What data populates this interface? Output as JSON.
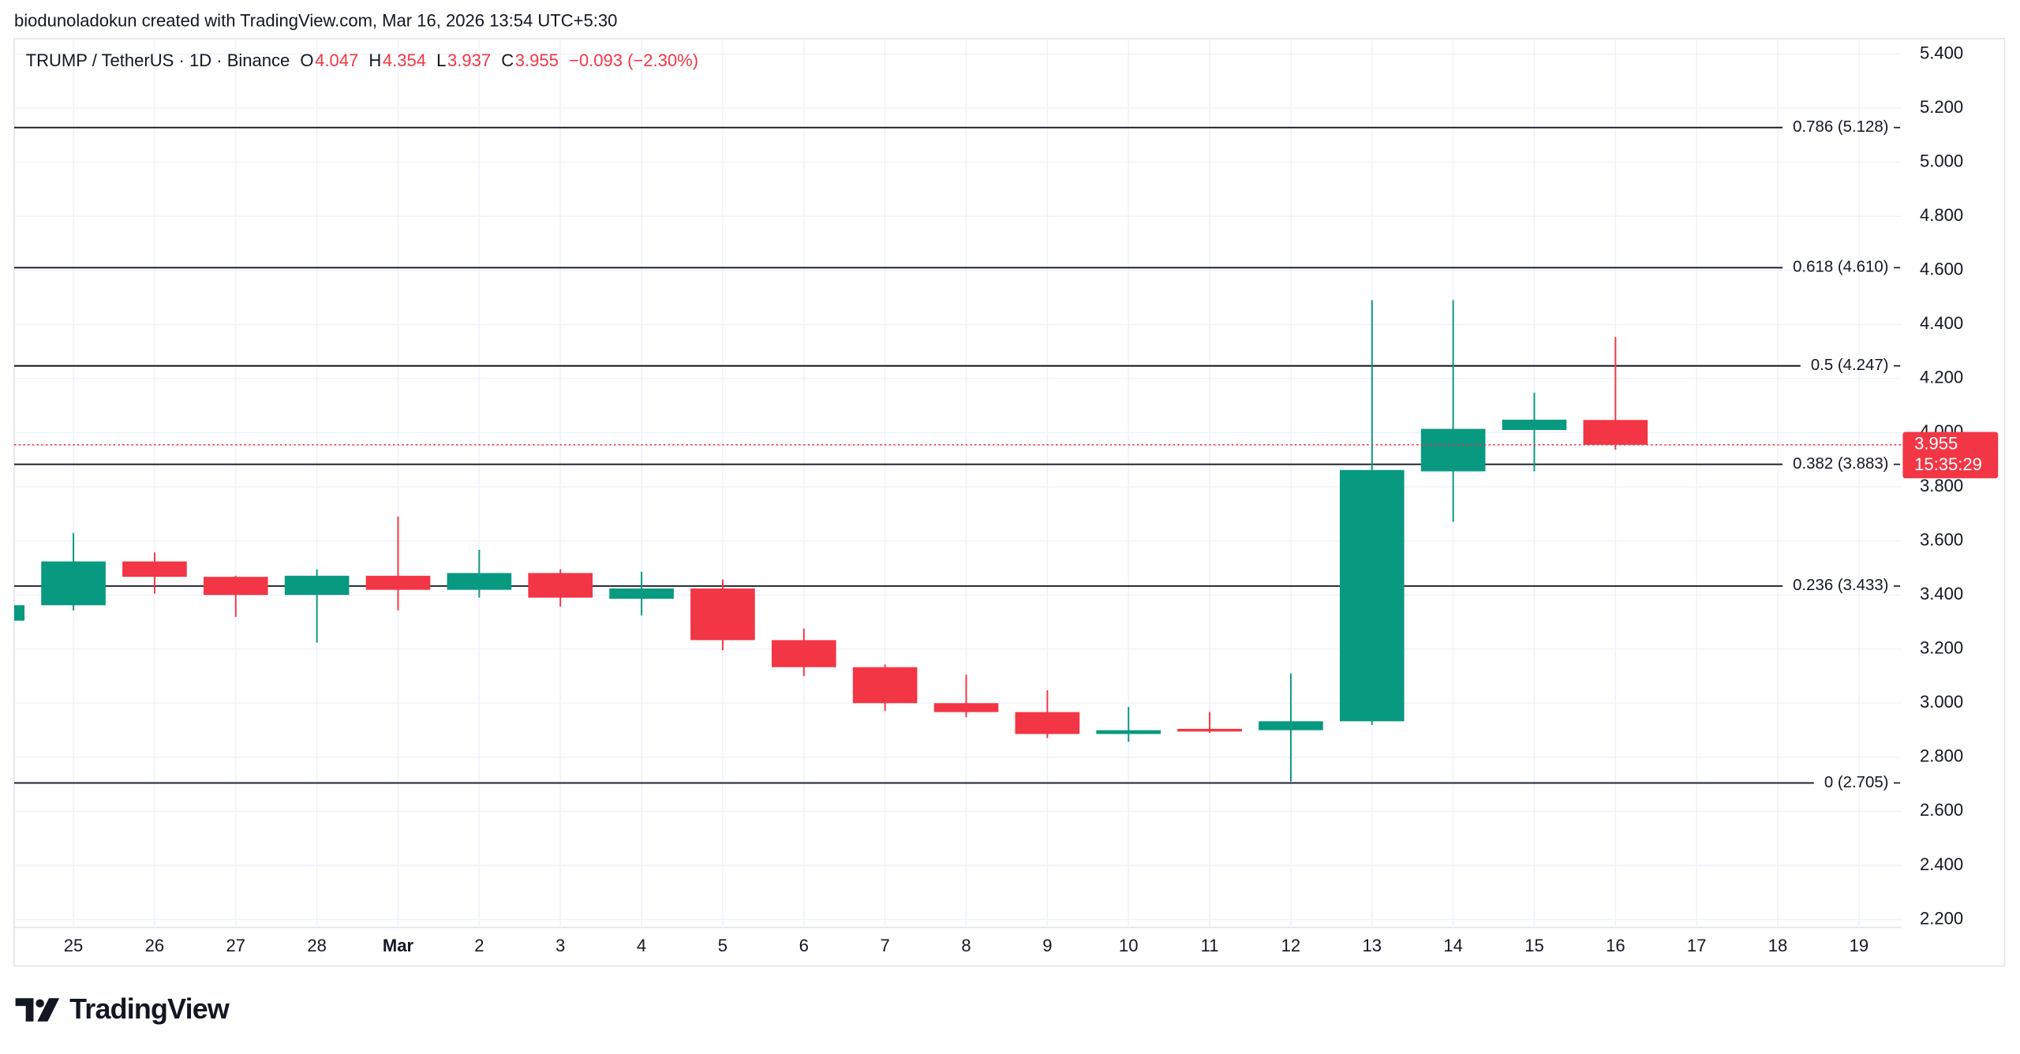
{
  "chart_data": {
    "type": "candlestick",
    "attribution": "biodunoladokun created with TradingView.com, Mar 16, 2026 13:54 UTC+5:30",
    "symbol": "TRUMP / TetherUS · 1D · Binance",
    "legend_labels": [
      "O",
      "H",
      "L",
      "C"
    ],
    "change": "−0.093 (−2.30%)",
    "countdown": "15:35:29",
    "branding": "TradingView",
    "categories": [
      null,
      "25",
      "26",
      "27",
      "28",
      "Mar",
      "2",
      "3",
      "4",
      "5",
      "6",
      "7",
      "8",
      "9",
      "10",
      "11",
      "12",
      "13",
      "14",
      "15",
      "16",
      "17",
      "18",
      "19"
    ],
    "open": [
      3.305,
      3.362,
      3.524,
      3.467,
      3.4,
      3.471,
      3.419,
      3.481,
      3.386,
      3.424,
      3.233,
      3.133,
      3.0,
      2.967,
      2.886,
      2.905,
      2.9,
      2.933,
      3.857,
      4.01,
      4.047,
      null,
      null,
      null
    ],
    "high": [
      3.37,
      3.629,
      3.557,
      3.471,
      3.495,
      3.69,
      3.567,
      3.495,
      3.486,
      3.457,
      3.276,
      3.143,
      3.105,
      3.048,
      2.986,
      2.967,
      3.11,
      4.49,
      4.49,
      4.148,
      4.354,
      null,
      null,
      null
    ],
    "low": [
      3.3,
      3.343,
      3.405,
      3.319,
      3.224,
      3.343,
      3.39,
      3.357,
      3.324,
      3.195,
      3.1,
      2.971,
      2.948,
      2.871,
      2.857,
      2.89,
      2.71,
      2.919,
      3.671,
      3.857,
      3.937,
      null,
      null,
      null
    ],
    "close": [
      3.362,
      3.524,
      3.467,
      3.4,
      3.471,
      3.419,
      3.481,
      3.39,
      3.424,
      3.233,
      3.133,
      3.0,
      2.967,
      2.886,
      2.9,
      2.895,
      2.933,
      3.862,
      4.014,
      4.048,
      3.955,
      null,
      null,
      null
    ],
    "up_color": "#089981",
    "down_color": "#f23645",
    "ylim": [
      2.171,
      5.452
    ],
    "yticks": [
      {
        "value": 2.2,
        "label": "2.200"
      },
      {
        "value": 2.4,
        "label": "2.400"
      },
      {
        "value": 2.6,
        "label": "2.600"
      },
      {
        "value": 2.8,
        "label": "2.800"
      },
      {
        "value": 3.0,
        "label": "3.000"
      },
      {
        "value": 3.2,
        "label": "3.200"
      },
      {
        "value": 3.4,
        "label": "3.400"
      },
      {
        "value": 3.6,
        "label": "3.600"
      },
      {
        "value": 3.8,
        "label": "3.800"
      },
      {
        "value": 4.0,
        "label": "4.000"
      },
      {
        "value": 4.2,
        "label": "4.200"
      },
      {
        "value": 4.4,
        "label": "4.400"
      },
      {
        "value": 4.6,
        "label": "4.600"
      },
      {
        "value": 4.8,
        "label": "4.800"
      },
      {
        "value": 5.0,
        "label": "5.000"
      },
      {
        "value": 5.2,
        "label": "5.200"
      },
      {
        "value": 5.4,
        "label": "5.400"
      }
    ],
    "fib_levels": [
      {
        "value": 5.128,
        "label": "0.786 (5.128)"
      },
      {
        "value": 4.61,
        "label": "0.618 (4.610)"
      },
      {
        "value": 4.247,
        "label": "0.5 (4.247)"
      },
      {
        "value": 3.883,
        "label": "0.382 (3.883)"
      },
      {
        "value": 3.433,
        "label": "0.236 (3.433)"
      },
      {
        "value": 2.705,
        "label": "0 (2.705)"
      }
    ],
    "grid": true
  }
}
